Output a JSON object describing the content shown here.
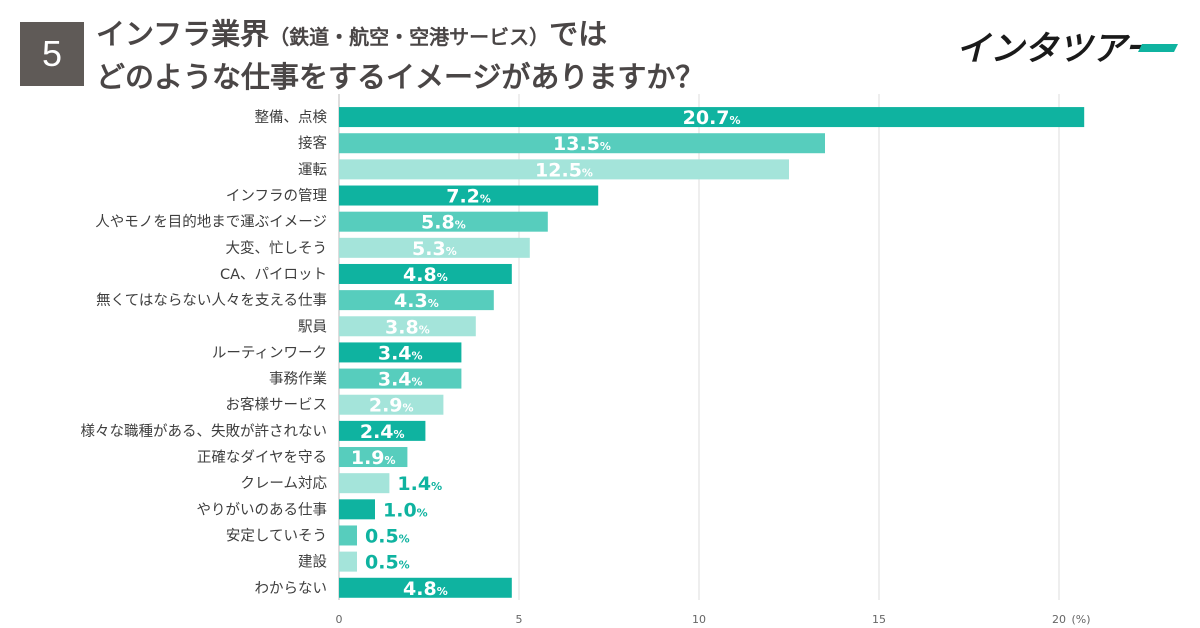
{
  "header": {
    "question_number": "5",
    "title_line1_main": "インフラ業界",
    "title_line1_paren": "（鉄道・航空・空港サービス）",
    "title_line1_tail": "では",
    "title_line2": "どのような仕事をするイメージがありますか？",
    "logo_text": "インタツアー"
  },
  "colors": {
    "dark": "#0fb3a0",
    "mid": "#57cdbd",
    "light": "#a4e4da",
    "label_outside": "#0fb3a0"
  },
  "chart_data": {
    "type": "bar",
    "orientation": "horizontal",
    "categories": [
      "整備、点検",
      "接客",
      "運転",
      "インフラの管理",
      "人やモノを目的地まで運ぶイメージ",
      "大変、忙しそう",
      "CA、パイロット",
      "無くてはならない人々を支える仕事",
      "駅員",
      "ルーティンワーク",
      "事務作業",
      "お客様サービス",
      "様々な職種がある、失敗が許されない",
      "正確なダイヤを守る",
      "クレーム対応",
      "やりがいのある仕事",
      "安定していそう",
      "建設",
      "わからない"
    ],
    "values": [
      20.7,
      13.5,
      12.5,
      7.2,
      5.8,
      5.3,
      4.8,
      4.3,
      3.8,
      3.4,
      3.4,
      2.9,
      2.4,
      1.9,
      1.4,
      1.0,
      0.5,
      0.5,
      4.8
    ],
    "value_labels": [
      "20.7",
      "13.5",
      "12.5",
      "7.2",
      "5.8",
      "5.3",
      "4.8",
      "4.3",
      "3.8",
      "3.4",
      "3.4",
      "2.9",
      "2.4",
      "1.9",
      "1.4",
      "1.0",
      "0.5",
      "0.5",
      "4.8"
    ],
    "value_suffix": "%",
    "color_cycle": [
      "dark",
      "mid",
      "light"
    ],
    "xlim": [
      0,
      20
    ],
    "xticks": [
      0,
      5,
      10,
      15,
      20
    ],
    "x_unit_label": "(%)",
    "grid": true
  }
}
